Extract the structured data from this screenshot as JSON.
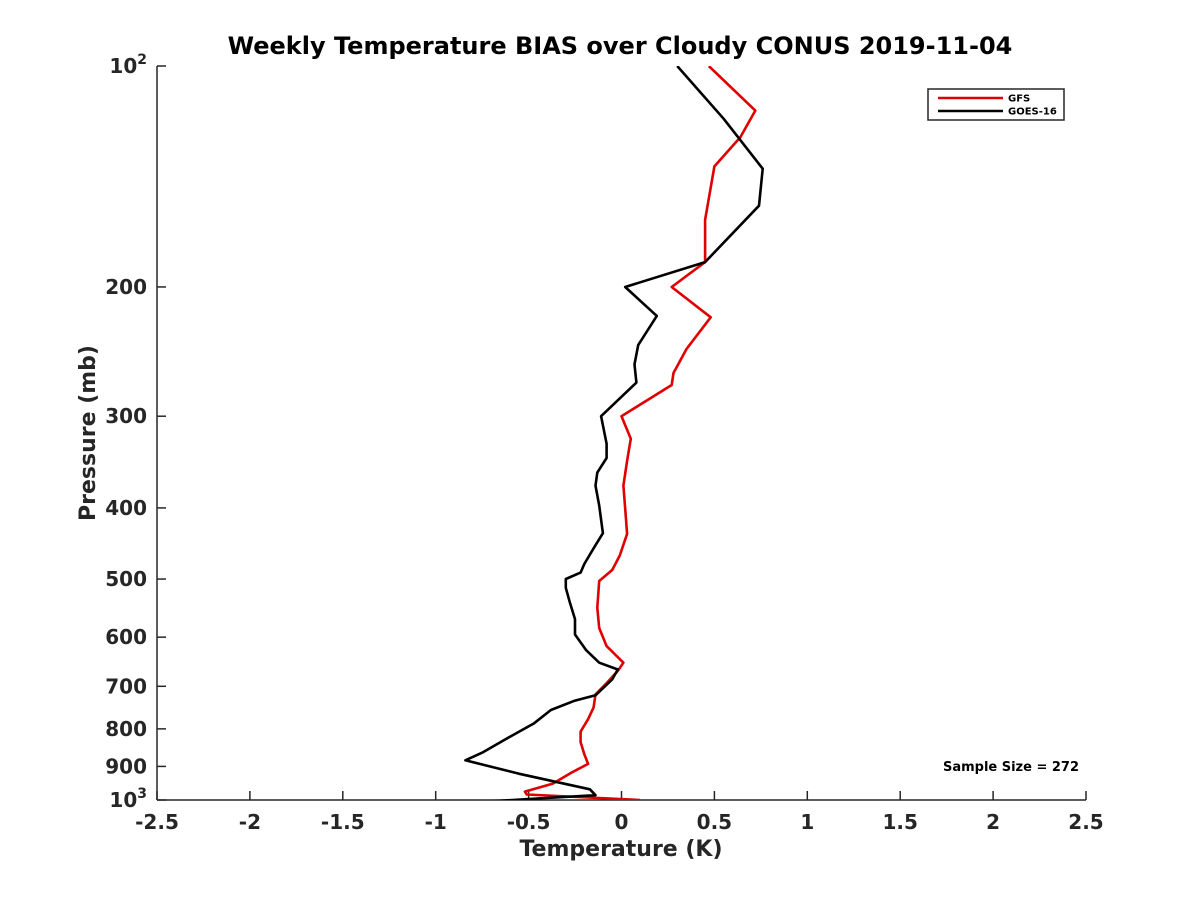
{
  "chart_data": {
    "type": "line",
    "title": "Weekly Temperature BIAS over Cloudy CONUS 2019-11-04",
    "xlabel": "Temperature (K)",
    "ylabel": "Pressure (mb)",
    "xlim": [
      -2.5,
      2.5
    ],
    "ylim": [
      100,
      1000
    ],
    "y_scale": "log",
    "y_reversed": true,
    "x_ticks": [
      "-2.5",
      "-2",
      "-1.5",
      "-1",
      "-0.5",
      "0",
      "0.5",
      "1",
      "1.5",
      "2",
      "2.5"
    ],
    "x_tick_values": [
      -2.5,
      -2,
      -1.5,
      -1,
      -0.5,
      0,
      0.5,
      1,
      1.5,
      2,
      2.5
    ],
    "y_ticks": [
      {
        "value": 100,
        "base": "10",
        "exp": "2"
      },
      {
        "value": 200,
        "label": "200"
      },
      {
        "value": 300,
        "label": "300"
      },
      {
        "value": 400,
        "label": "400"
      },
      {
        "value": 500,
        "label": "500"
      },
      {
        "value": 600,
        "label": "600"
      },
      {
        "value": 700,
        "label": "700"
      },
      {
        "value": 800,
        "label": "800"
      },
      {
        "value": 900,
        "label": "900"
      },
      {
        "value": 1000,
        "base": "10",
        "exp": "3"
      }
    ],
    "grid": false,
    "legend_position": "top-right",
    "series": [
      {
        "name": "GFS",
        "color": "#e00000",
        "points": [
          [
            0.47,
            100
          ],
          [
            0.72,
            115
          ],
          [
            0.64,
            125
          ],
          [
            0.5,
            137
          ],
          [
            0.45,
            162
          ],
          [
            0.45,
            185
          ],
          [
            0.27,
            200
          ],
          [
            0.48,
            220
          ],
          [
            0.35,
            243
          ],
          [
            0.28,
            262
          ],
          [
            0.27,
            272
          ],
          [
            0.0,
            300
          ],
          [
            0.05,
            322
          ],
          [
            0.03,
            345
          ],
          [
            0.01,
            373
          ],
          [
            0.02,
            401
          ],
          [
            0.03,
            434
          ],
          [
            -0.01,
            465
          ],
          [
            -0.05,
            486
          ],
          [
            -0.12,
            503
          ],
          [
            -0.13,
            547
          ],
          [
            -0.12,
            583
          ],
          [
            -0.08,
            617
          ],
          [
            0.01,
            650
          ],
          [
            -0.02,
            667
          ],
          [
            -0.08,
            693
          ],
          [
            -0.14,
            718
          ],
          [
            -0.15,
            748
          ],
          [
            -0.18,
            776
          ],
          [
            -0.22,
            807
          ],
          [
            -0.22,
            834
          ],
          [
            -0.2,
            866
          ],
          [
            -0.18,
            893
          ],
          [
            -0.27,
            918
          ],
          [
            -0.37,
            950
          ],
          [
            -0.52,
            974
          ],
          [
            -0.51,
            983
          ],
          [
            0.1,
            1000
          ]
        ]
      },
      {
        "name": "GOES-16",
        "color": "#000000",
        "points": [
          [
            0.3,
            100
          ],
          [
            0.55,
            118
          ],
          [
            0.76,
            138
          ],
          [
            0.74,
            155
          ],
          [
            0.45,
            185
          ],
          [
            0.02,
            200
          ],
          [
            0.19,
            219
          ],
          [
            0.09,
            240
          ],
          [
            0.07,
            255
          ],
          [
            0.08,
            270
          ],
          [
            -0.11,
            300
          ],
          [
            -0.08,
            327
          ],
          [
            -0.08,
            342
          ],
          [
            -0.13,
            358
          ],
          [
            -0.14,
            373
          ],
          [
            -0.12,
            397
          ],
          [
            -0.1,
            433
          ],
          [
            -0.15,
            454
          ],
          [
            -0.2,
            477
          ],
          [
            -0.22,
            490
          ],
          [
            -0.3,
            500
          ],
          [
            -0.3,
            514
          ],
          [
            -0.28,
            536
          ],
          [
            -0.25,
            567
          ],
          [
            -0.25,
            595
          ],
          [
            -0.19,
            625
          ],
          [
            -0.12,
            650
          ],
          [
            -0.02,
            664
          ],
          [
            -0.05,
            685
          ],
          [
            -0.14,
            720
          ],
          [
            -0.25,
            732
          ],
          [
            -0.38,
            754
          ],
          [
            -0.47,
            786
          ],
          [
            -0.6,
            820
          ],
          [
            -0.75,
            862
          ],
          [
            -0.84,
            883
          ],
          [
            -0.55,
            921
          ],
          [
            -0.17,
            967
          ],
          [
            -0.14,
            985
          ],
          [
            -0.5,
            997
          ],
          [
            -0.87,
            1010
          ],
          [
            -0.5,
            1022
          ]
        ]
      }
    ],
    "annotations": [
      "Sample Size = 272"
    ]
  }
}
